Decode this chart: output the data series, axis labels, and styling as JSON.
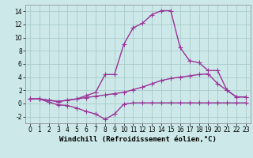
{
  "xlabel": "Windchill (Refroidissement éolien,°C)",
  "xlim": [
    -0.5,
    23.5
  ],
  "ylim": [
    -3,
    15
  ],
  "xticks": [
    0,
    1,
    2,
    3,
    4,
    5,
    6,
    7,
    8,
    9,
    10,
    11,
    12,
    13,
    14,
    15,
    16,
    17,
    18,
    19,
    20,
    21,
    22,
    23
  ],
  "yticks": [
    -2,
    0,
    2,
    4,
    6,
    8,
    10,
    12,
    14
  ],
  "background_color": "#cce8e8",
  "grid_color": "#aacccc",
  "line_color": "#993399",
  "line1_x": [
    0,
    1,
    2,
    3,
    4,
    5,
    6,
    7,
    8,
    9,
    10,
    11,
    12,
    13,
    14,
    15,
    16,
    17,
    18,
    19,
    20,
    21,
    22,
    23
  ],
  "line1_y": [
    0.7,
    0.7,
    0.2,
    -0.2,
    -0.3,
    -0.7,
    -1.2,
    -1.6,
    -2.4,
    -1.6,
    -0.1,
    0.1,
    0.1,
    0.1,
    0.1,
    0.1,
    0.1,
    0.1,
    0.1,
    0.1,
    0.1,
    0.1,
    0.1,
    0.1
  ],
  "line2_x": [
    0,
    1,
    2,
    3,
    4,
    5,
    6,
    7,
    8,
    9,
    10,
    11,
    12,
    13,
    14,
    15,
    16,
    17,
    18,
    19,
    20,
    21,
    22,
    23
  ],
  "line2_y": [
    0.7,
    0.7,
    0.5,
    0.3,
    0.5,
    0.7,
    0.9,
    1.1,
    1.3,
    1.5,
    1.7,
    2.1,
    2.5,
    3.0,
    3.5,
    3.8,
    4.0,
    4.2,
    4.4,
    4.5,
    3.0,
    2.0,
    1.0,
    1.0
  ],
  "line3_x": [
    0,
    1,
    2,
    3,
    4,
    5,
    6,
    7,
    8,
    9,
    10,
    11,
    12,
    13,
    14,
    15,
    16,
    17,
    18,
    19,
    20,
    21,
    22,
    23
  ],
  "line3_y": [
    0.7,
    0.7,
    0.5,
    0.3,
    0.5,
    0.7,
    1.2,
    1.7,
    4.4,
    4.4,
    9.0,
    11.5,
    12.2,
    13.5,
    14.1,
    14.1,
    8.5,
    6.5,
    6.2,
    5.0,
    5.0,
    2.0,
    1.0,
    1.0
  ],
  "marker": "+",
  "markersize": 4,
  "linewidth": 1.0,
  "tick_fontsize": 5.5,
  "xlabel_fontsize": 6.5
}
